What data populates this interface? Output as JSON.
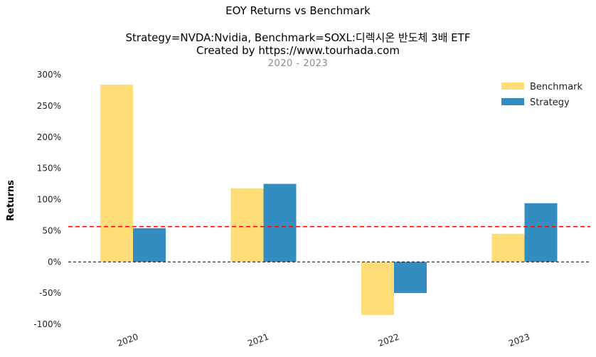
{
  "title": "EOY Returns vs Benchmark",
  "subtitle_line1": "Strategy=NVDA:Nvidia, Benchmark=SOXL:디렉시온 반도체 3배 ETF",
  "subtitle_line2": "Created by https://www.tourhada.com",
  "period": "2020 - 2023",
  "chart_data": {
    "type": "bar",
    "categories": [
      "2020",
      "2021",
      "2022",
      "2023"
    ],
    "series": [
      {
        "name": "Benchmark",
        "values": [
          284,
          118,
          -85,
          45
        ],
        "color": "#fedd78"
      },
      {
        "name": "Strategy",
        "values": [
          54,
          125,
          -50,
          94
        ],
        "color": "#348dc1"
      }
    ],
    "ylabel": "Returns",
    "ylim": [
      -100,
      300
    ],
    "yticks": [
      -100,
      -50,
      0,
      50,
      100,
      150,
      200,
      250,
      300
    ],
    "ytick_labels": [
      "-100%",
      "-50%",
      "0%",
      "50%",
      "100%",
      "150%",
      "200%",
      "250%",
      "300%"
    ],
    "mean_line": 56.5,
    "mean_line_color": "#ff0000",
    "zero_line_color": "#000000",
    "legend_position": "top-right",
    "grid": false
  }
}
